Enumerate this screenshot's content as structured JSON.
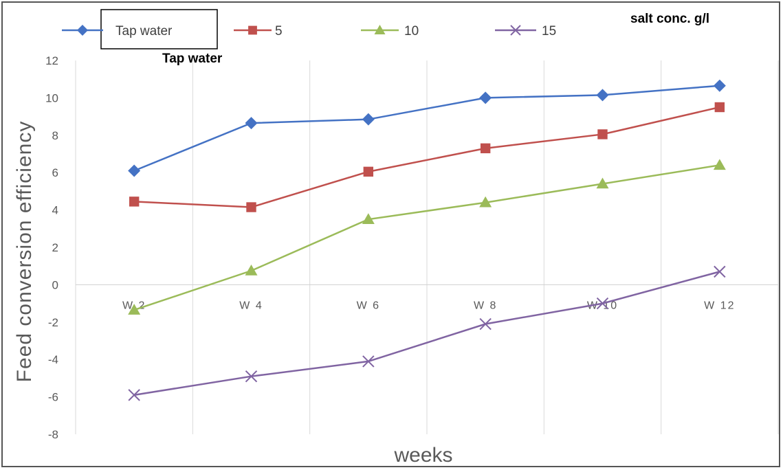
{
  "chart_data": {
    "type": "line",
    "categories": [
      "W 2",
      "W 4",
      "W 6",
      "W 8",
      "W 10",
      "W 12"
    ],
    "series": [
      {
        "name": "Tap water",
        "values": [
          6.1,
          8.65,
          8.85,
          10.0,
          10.15,
          10.65
        ],
        "color": "#4472c4",
        "marker": "diamond"
      },
      {
        "name": "5",
        "values": [
          4.45,
          4.15,
          6.05,
          7.3,
          8.05,
          9.5
        ],
        "color": "#c0504d",
        "marker": "square"
      },
      {
        "name": "10",
        "values": [
          -1.35,
          0.75,
          3.5,
          4.4,
          5.4,
          6.4
        ],
        "color": "#9bbb59",
        "marker": "triangle"
      },
      {
        "name": "15",
        "values": [
          -5.9,
          -4.9,
          -4.1,
          -2.1,
          -1.0,
          0.7
        ],
        "color": "#8064a2",
        "marker": "x"
      }
    ],
    "ylim": [
      -8,
      12
    ],
    "yticks": [
      -8,
      -6,
      -4,
      -2,
      0,
      2,
      4,
      6,
      8,
      10,
      12
    ],
    "xlabel": "weeks",
    "ylabel": "Feed  conversion  efficiency",
    "legend_note": "salt  conc.  g/l",
    "annotation": "Tap water",
    "grid": "vertical",
    "legend_position": "top"
  }
}
